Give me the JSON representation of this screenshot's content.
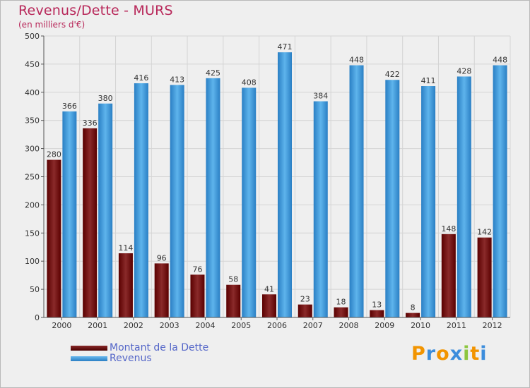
{
  "colors": {
    "title": "#b8285a",
    "dette": "#6b0a0a",
    "revenus": "#3b95d8",
    "legend_text": "#5466c8"
  },
  "chart_data": {
    "type": "bar",
    "title": "Revenus/Dette - MURS",
    "subtitle": "(en milliers d'€)",
    "categories": [
      "2000",
      "2001",
      "2002",
      "2003",
      "2004",
      "2005",
      "2006",
      "2007",
      "2008",
      "2009",
      "2010",
      "2011",
      "2012"
    ],
    "series": [
      {
        "name": "Montant de la Dette",
        "values": [
          280,
          336,
          114,
          96,
          76,
          58,
          41,
          23,
          18,
          13,
          8,
          148,
          142
        ]
      },
      {
        "name": "Revenus",
        "values": [
          366,
          380,
          416,
          413,
          425,
          408,
          471,
          384,
          448,
          422,
          411,
          428,
          448
        ]
      }
    ],
    "ylim": [
      0,
      500
    ],
    "yticks": [
      0,
      50,
      100,
      150,
      200,
      250,
      300,
      350,
      400,
      450,
      500
    ],
    "grid": true,
    "xlabel": "",
    "ylabel": ""
  },
  "legend": {
    "items": [
      {
        "label": "Montant de la Dette",
        "color": "#6b0a0a"
      },
      {
        "label": "Revenus",
        "color": "#3b95d8"
      }
    ]
  },
  "logo": {
    "letters": [
      "P",
      "r",
      "o",
      "x",
      "i",
      "t",
      "i"
    ],
    "colors": [
      "#f29400",
      "#3c8ddc",
      "#f29400",
      "#3c8ddc",
      "#8cc63f",
      "#f29400",
      "#3c8ddc"
    ]
  }
}
